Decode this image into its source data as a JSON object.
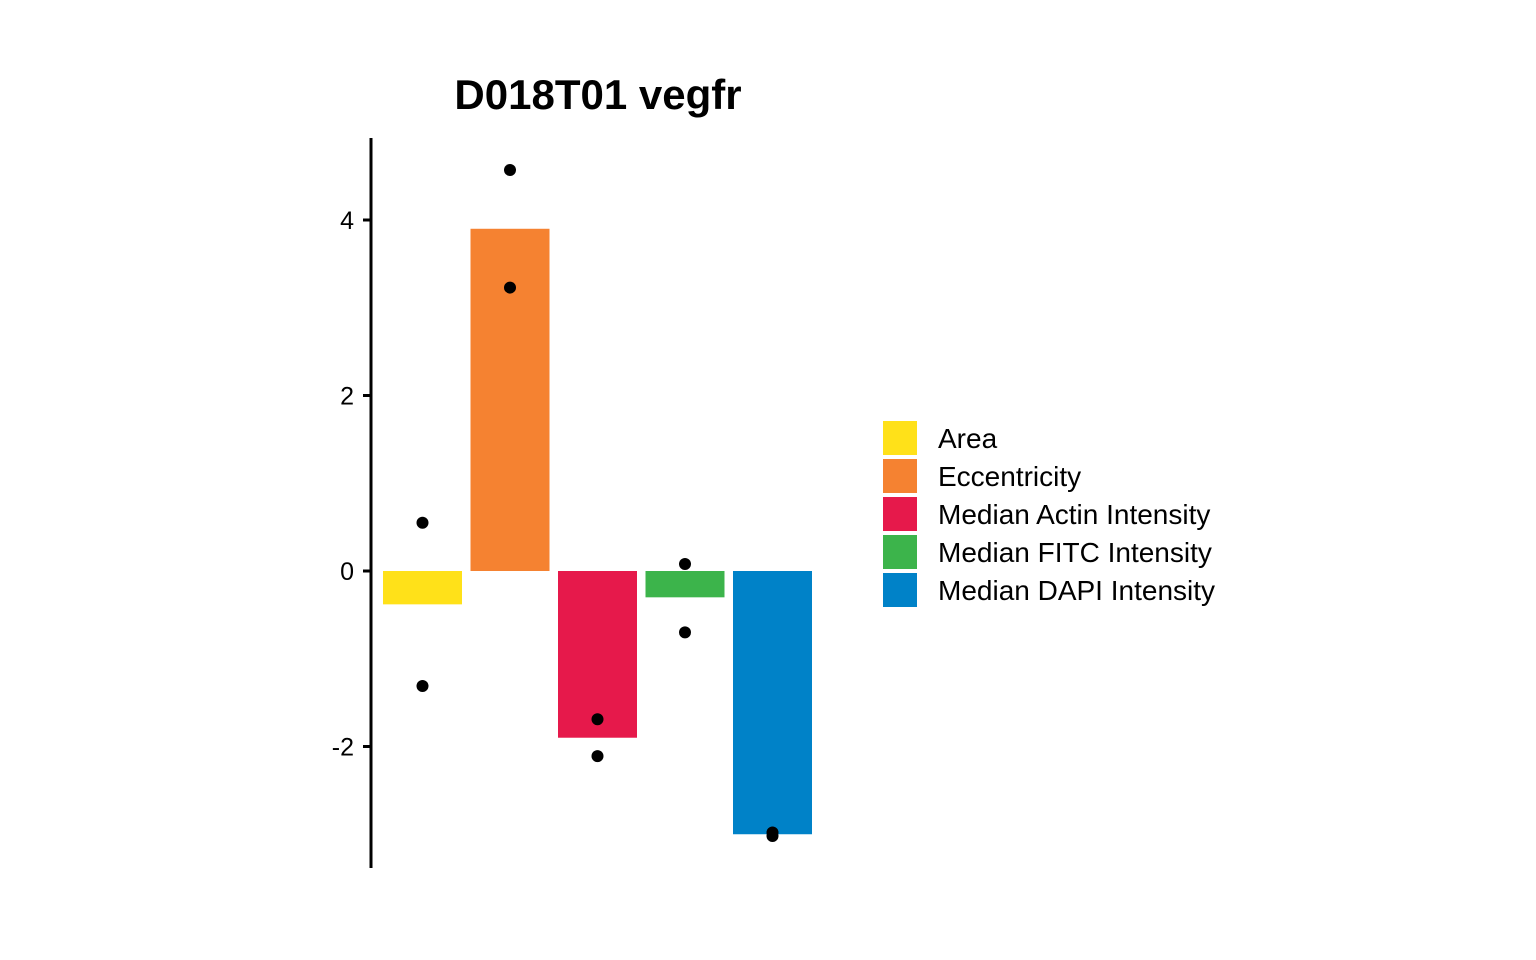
{
  "chart_data": {
    "type": "bar",
    "title": "D018T01 vegfr",
    "xlabel": "",
    "ylabel": "",
    "ylim": [
      -3.4,
      4.9
    ],
    "yticks": [
      4,
      2,
      0,
      -2
    ],
    "ytick_labels": [
      "4",
      "2",
      "0",
      "-2"
    ],
    "grid": false,
    "legend_position": "right",
    "categories": [
      "Area",
      "Eccentricity",
      "Median Actin Intensity",
      "Median FITC Intensity",
      "Median DAPI Intensity"
    ],
    "values": [
      -0.38,
      3.9,
      -1.9,
      -0.3,
      -3.0
    ],
    "colors": [
      "#FFE119",
      "#F58231",
      "#E6194B",
      "#3CB44B",
      "#0082C8"
    ],
    "points": [
      [
        0.55,
        -1.31
      ],
      [
        4.57,
        3.23
      ],
      [
        -1.69,
        -2.11
      ],
      [
        0.08,
        -0.7
      ],
      [
        -2.98,
        -3.02
      ]
    ]
  }
}
